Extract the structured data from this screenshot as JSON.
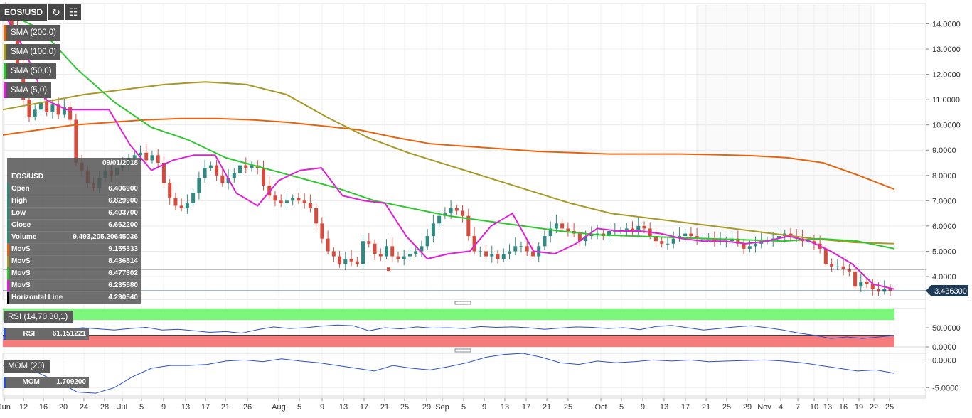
{
  "toolbar": {
    "symbol": "EOS/USD",
    "refresh_icon": "refresh-icon",
    "settings_icon": "chart-settings-icon"
  },
  "legend": [
    {
      "label": "SMA (200,0)",
      "color": "#e8640c"
    },
    {
      "label": "SMA (100,0)",
      "color": "#a89824"
    },
    {
      "label": "SMA (50,0)",
      "color": "#2ec72e"
    },
    {
      "label": "SMA (5,0)",
      "color": "#e020d8"
    }
  ],
  "info": {
    "date": "09/01/2018",
    "symbol": "EOS/USD",
    "rows": [
      {
        "label": "Open",
        "value": "6.406900",
        "color": "#2a8a7a"
      },
      {
        "label": "High",
        "value": "6.829900",
        "color": "#2a8a7a"
      },
      {
        "label": "Low",
        "value": "6.403700",
        "color": "#2a8a7a"
      },
      {
        "label": "Close",
        "value": "6.662200",
        "color": "#2a8a7a"
      },
      {
        "label": "Volume",
        "value": "9,493,205.20645036",
        "color": "#2a8a7a"
      },
      {
        "label": "MovS",
        "value": "9.155333",
        "color": "#e8640c"
      },
      {
        "label": "MovS",
        "value": "8.436814",
        "color": "#a89824"
      },
      {
        "label": "MovS",
        "value": "6.477302",
        "color": "#2ec72e"
      },
      {
        "label": "MovS",
        "value": "6.235580",
        "color": "#e020d8"
      },
      {
        "label": "Horizontal Line",
        "value": "4.290540",
        "color": "#000000"
      }
    ]
  },
  "rsi": {
    "label": "RSI (14,70,30,1)",
    "value_label": "RSI",
    "value": "61.151221"
  },
  "mom": {
    "label": "MOM (20)",
    "value_label": "MOM",
    "value": "1.709200"
  },
  "chart_data": [
    {
      "type": "line",
      "title": "",
      "y_axis_ticks": [
        "14.0000",
        "13.0000",
        "12.0000",
        "11.0000",
        "10.0000",
        "9.0000",
        "8.0000",
        "7.0000",
        "6.0000",
        "5.0000",
        "4.0000"
      ],
      "ylim": [
        3.1,
        14.8
      ],
      "x_axis_ticks": [
        "Jun",
        "12",
        "16",
        "20",
        "24",
        "28",
        "Jul",
        "5",
        "9",
        "13",
        "17",
        "21",
        "26",
        "Aug",
        "5",
        "9",
        "13",
        "17",
        "21",
        "25",
        "29",
        "Sep",
        "5",
        "9",
        "13",
        "17",
        "21",
        "25",
        "Oct",
        "5",
        "9",
        "13",
        "17",
        "21",
        "25",
        "29",
        "Nov",
        "4",
        "7",
        "10",
        "13",
        "16",
        "19",
        "22",
        "25"
      ],
      "last_price_label": "3.436300",
      "horizontal_line": 4.29054,
      "candles_close": [
        14.5,
        13.9,
        12.4,
        11.0,
        10.3,
        10.6,
        10.9,
        10.5,
        10.8,
        10.4,
        10.7,
        10.2,
        8.5,
        8.2,
        7.7,
        7.5,
        7.9,
        8.2,
        8.0,
        8.3,
        8.4,
        8.7,
        8.8,
        8.9,
        8.6,
        8.8,
        8.5,
        7.7,
        7.1,
        6.8,
        6.7,
        6.9,
        7.3,
        7.9,
        8.3,
        8.4,
        8.0,
        7.7,
        7.9,
        8.1,
        8.4,
        8.3,
        8.4,
        8.3,
        7.6,
        7.2,
        7.0,
        6.9,
        7.0,
        7.1,
        7.0,
        6.9,
        6.7,
        6.1,
        5.5,
        5.0,
        4.8,
        4.5,
        4.7,
        4.6,
        4.5,
        5.4,
        5.3,
        4.9,
        4.8,
        5.2,
        4.8,
        4.7,
        4.8,
        4.9,
        5.0,
        5.2,
        5.6,
        6.1,
        6.4,
        6.5,
        6.7,
        6.6,
        6.4,
        5.6,
        5.0,
        5.0,
        4.8,
        4.9,
        4.7,
        4.9,
        5.0,
        5.2,
        5.2,
        5.0,
        4.8,
        5.2,
        5.6,
        5.9,
        6.1,
        5.9,
        5.8,
        5.7,
        5.4,
        5.6,
        5.7,
        5.7,
        5.6,
        5.8,
        5.8,
        5.8,
        5.9,
        5.8,
        6.0,
        5.9,
        5.6,
        5.4,
        5.3,
        5.3,
        5.5,
        5.6,
        5.7,
        5.6,
        5.5,
        5.5,
        5.5,
        5.4,
        5.4,
        5.4,
        5.5,
        5.3,
        5.1,
        5.2,
        5.3,
        5.4,
        5.4,
        5.5,
        5.6,
        5.7,
        5.6,
        5.5,
        5.4,
        5.4,
        5.3,
        5.1,
        4.5,
        4.4,
        4.4,
        4.3,
        4.2,
        3.6,
        3.8,
        3.7,
        3.5,
        3.4,
        3.5,
        3.44
      ],
      "series": [
        {
          "name": "SMA (200,0)",
          "values": [
            9.6,
            9.8,
            10.0,
            10.1,
            10.2,
            10.25,
            10.25,
            10.2,
            10.1,
            9.95,
            9.8,
            9.5,
            9.25,
            9.15,
            9.05,
            8.95,
            8.9,
            8.85,
            8.85,
            8.85,
            8.82,
            8.78,
            8.7,
            8.5,
            8.0,
            7.45
          ]
        },
        {
          "name": "SMA (100,0)",
          "values": [
            10.6,
            10.9,
            11.2,
            11.4,
            11.6,
            11.7,
            11.6,
            11.2,
            10.3,
            9.5,
            8.9,
            8.4,
            7.9,
            7.4,
            6.9,
            6.5,
            6.3,
            6.1,
            5.9,
            5.7,
            5.5,
            5.35,
            5.3
          ]
        },
        {
          "name": "SMA (50,0)",
          "values": [
            14.5,
            13.8,
            12.2,
            10.9,
            9.9,
            9.4,
            8.7,
            8.3,
            7.9,
            7.5,
            7.0,
            6.7,
            6.4,
            6.2,
            6.0,
            5.8,
            5.65,
            5.6,
            5.55,
            5.5,
            5.45,
            5.4,
            5.5,
            5.4,
            5.1
          ]
        },
        {
          "name": "SMA (5,0)",
          "values": [
            14.5,
            13.0,
            11.0,
            10.6,
            10.6,
            10.6,
            9.2,
            8.2,
            8.6,
            8.8,
            8.8,
            7.3,
            6.8,
            7.8,
            8.2,
            8.3,
            7.2,
            7.0,
            6.9,
            5.6,
            4.7,
            4.9,
            5.0,
            6.0,
            6.5,
            5.0,
            4.9,
            5.3,
            5.9,
            5.8,
            5.8,
            5.7,
            5.5,
            5.4,
            5.4,
            5.3,
            5.4,
            5.6,
            5.4,
            5.0,
            4.5,
            3.7,
            3.5
          ]
        }
      ]
    },
    {
      "type": "line",
      "title": "",
      "y_axis_ticks": [
        "50.0000",
        "0.0000"
      ],
      "ylim": [
        0,
        100
      ],
      "upper_band": 70,
      "lower_band": 30,
      "series": [
        {
          "name": "RSI",
          "values": [
            42,
            45,
            40,
            47,
            45,
            50,
            47,
            44,
            48,
            51,
            44,
            46,
            42,
            38,
            40,
            36,
            45,
            52,
            48,
            50,
            54,
            57,
            55,
            42,
            50,
            47,
            52,
            49,
            50,
            48,
            53,
            51,
            52,
            50,
            46,
            49,
            52,
            51,
            48,
            50,
            45,
            53,
            56,
            50,
            44,
            48,
            52,
            55,
            50,
            44,
            36,
            30,
            22,
            26,
            22,
            26,
            30
          ]
        }
      ]
    },
    {
      "type": "line",
      "title": "",
      "y_axis_ticks": [
        "0.0000",
        "-5.0000"
      ],
      "ylim": [
        -6.5,
        1.2
      ],
      "series": [
        {
          "name": "MOM",
          "values": [
            -1.0,
            -0.5,
            -2.5,
            -4.0,
            -5.8,
            -6.0,
            -5.0,
            -3.0,
            -1.5,
            -1.0,
            -1.0,
            -0.8,
            -0.2,
            0.0,
            -0.3,
            0.2,
            -0.2,
            -0.5,
            -1.0,
            -1.5,
            -2.0,
            -1.0,
            -1.5,
            -1.8,
            -1.2,
            -0.5,
            0.5,
            1.0,
            1.2,
            0.5,
            -0.5,
            -0.8,
            -0.2,
            -0.5,
            -0.3,
            0.0,
            -0.2,
            0.0,
            -0.3,
            -0.2,
            -0.1,
            0.0,
            -0.2,
            -0.5,
            -1.0,
            -1.5,
            -2.0,
            -1.8,
            -2.4
          ]
        }
      ]
    }
  ]
}
